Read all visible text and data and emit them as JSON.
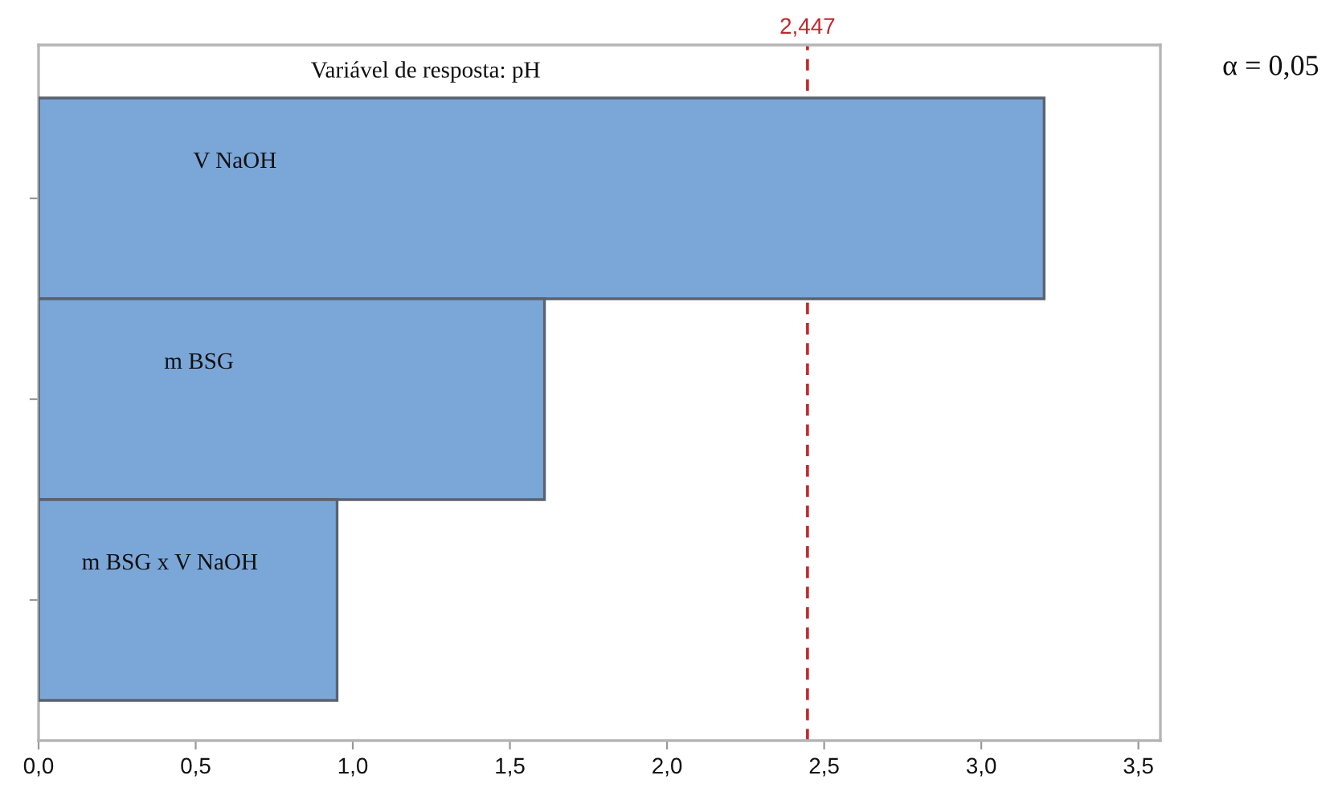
{
  "chart_data": {
    "type": "bar",
    "orientation": "horizontal",
    "title": "Variável de resposta: pH",
    "categories": [
      "V NaOH",
      "m BSG",
      "m BSG x V NaOH"
    ],
    "values": [
      3.2,
      1.61,
      0.95
    ],
    "color": "#7ba6d8",
    "xlim": [
      0,
      3.57
    ],
    "xticks": [
      {
        "value": 0,
        "label": "0,0"
      },
      {
        "value": 0.5,
        "label": "0,5"
      },
      {
        "value": 1,
        "label": "1,0"
      },
      {
        "value": 1.5,
        "label": "1,5"
      },
      {
        "value": 2,
        "label": "2,0"
      },
      {
        "value": 2.5,
        "label": "2,5"
      },
      {
        "value": 3,
        "label": "3,0"
      },
      {
        "value": 3.5,
        "label": "3,5"
      }
    ],
    "ref_lines": [
      {
        "axis": "x",
        "value": 2.447,
        "label": "2,447",
        "color": "#c0282d",
        "line_style": "dashed"
      }
    ],
    "annotations": [
      "α = 0,05"
    ],
    "tick_labels": "x",
    "grid": false,
    "legend": false
  }
}
